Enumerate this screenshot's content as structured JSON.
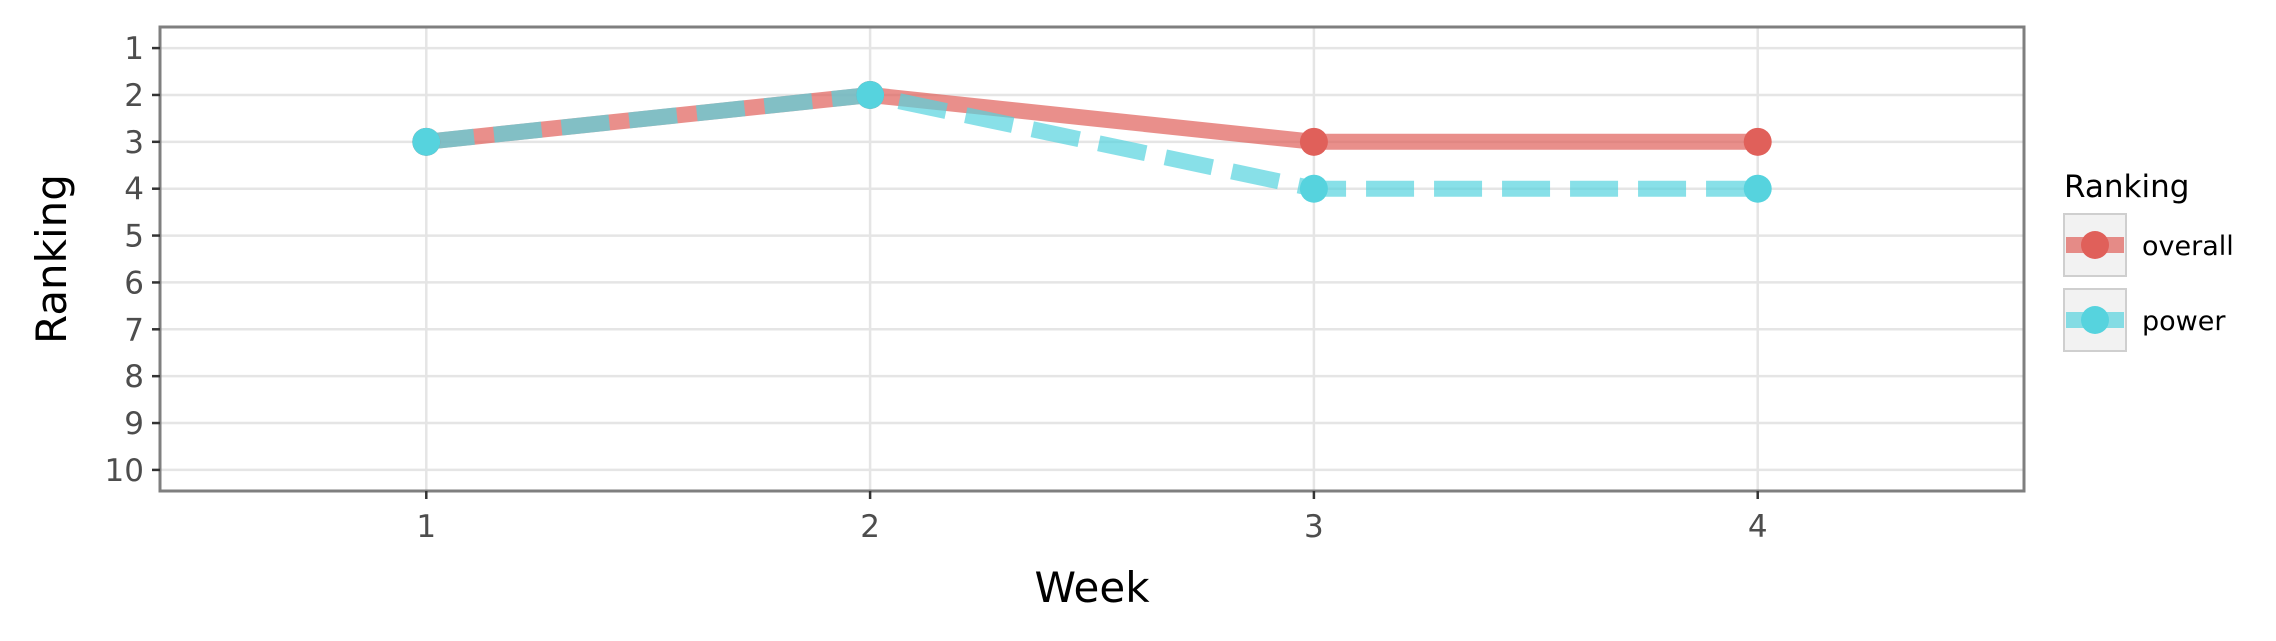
{
  "chart_data": {
    "type": "line",
    "xlabel": "Week",
    "ylabel": "Ranking",
    "x": [
      1,
      2,
      3,
      4
    ],
    "x_ticks": [
      "1",
      "2",
      "3",
      "4"
    ],
    "xlim": [
      0.4,
      4.6
    ],
    "y_ticks": [
      "1",
      "2",
      "3",
      "4",
      "5",
      "6",
      "7",
      "8",
      "9",
      "10"
    ],
    "ylim": [
      0.55,
      10.45
    ],
    "y_reversed": true,
    "grid": true,
    "legend_title": "Ranking",
    "legend_position": "right",
    "series": [
      {
        "name": "overall",
        "values": [
          3,
          2,
          3,
          3
        ],
        "color": "#e0605a",
        "line_style": "solid"
      },
      {
        "name": "power",
        "values": [
          3,
          2,
          4,
          4
        ],
        "color": "#56d3de",
        "line_style": "dashed"
      }
    ]
  }
}
